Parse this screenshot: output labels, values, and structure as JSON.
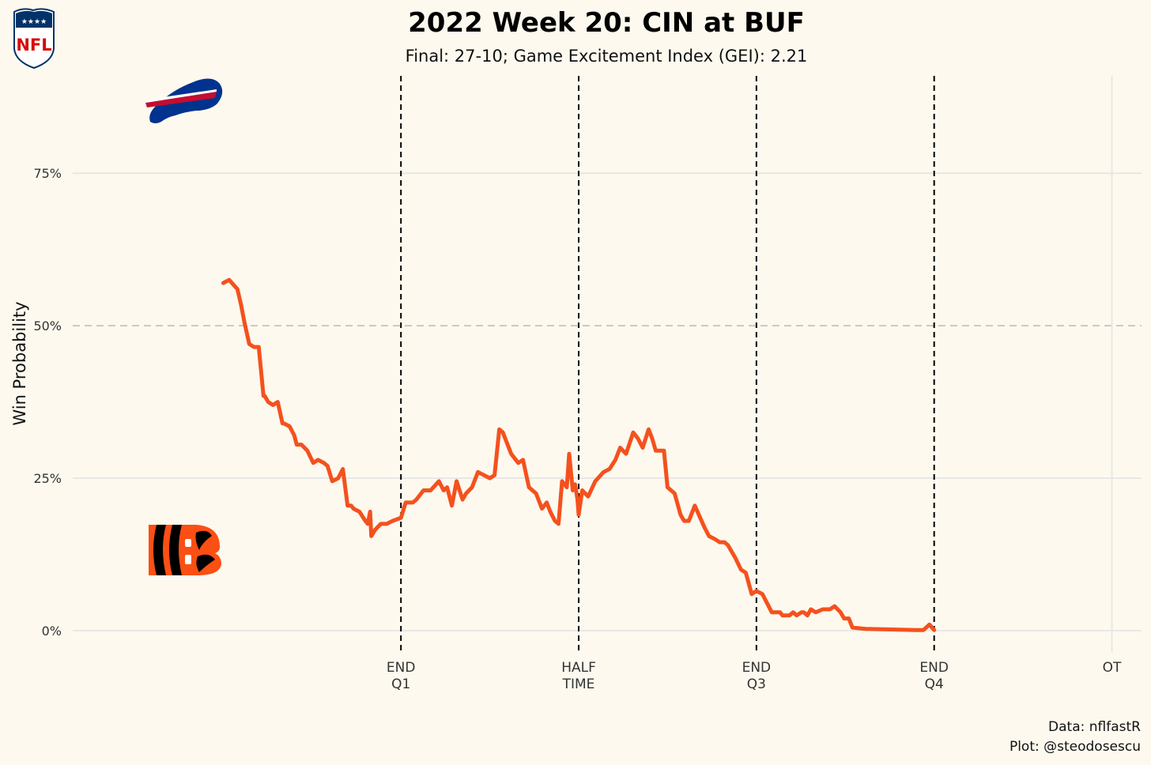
{
  "chart_data": {
    "type": "line",
    "title": "2022 Week 20: CIN at BUF",
    "subtitle": "Final: 27-10; Game Excitement Index (GEI): 2.21",
    "xlabel": "",
    "ylabel": "Win Probability",
    "x_unit": "game minutes elapsed",
    "xlim": [
      -12.7,
      77.5
    ],
    "ylim": [
      -0.035,
      0.92
    ],
    "y_ticks": [
      {
        "value": 0,
        "label": "0%"
      },
      {
        "value": 0.25,
        "label": "25%"
      },
      {
        "value": 0.5,
        "label": "50%"
      },
      {
        "value": 0.75,
        "label": "75%"
      }
    ],
    "x_ticks": [
      {
        "value": 15,
        "line1": "END",
        "line2": "Q1"
      },
      {
        "value": 30,
        "line1": "HALF",
        "line2": "TIME"
      },
      {
        "value": 45,
        "line1": "END",
        "line2": "Q3"
      },
      {
        "value": 60,
        "line1": "END",
        "line2": "Q4"
      },
      {
        "value": 75,
        "line1": "OT",
        "line2": ""
      }
    ],
    "reference_line_y": 0.5,
    "grid": true,
    "colors": {
      "series": "#f4511e",
      "background": "#fdf9ee",
      "grid": "#e6e6e6",
      "quarter_line": "#000000",
      "midline": "#bbbbbb"
    },
    "team_logos": {
      "top": "Buffalo Bills",
      "bottom": "Cincinnati Bengals"
    },
    "series": [
      {
        "x": [
          0,
          0.5,
          1.2,
          1.5,
          1.8,
          2.2,
          2.6,
          3,
          3.4,
          3.5,
          3.8,
          4.2,
          4.6,
          5,
          5.1,
          5.6,
          6,
          6.2,
          6.6,
          7.1,
          7.6,
          8,
          8.5,
          8.8,
          9.2,
          9.7,
          10.1,
          10.5,
          10.8,
          11,
          11.5,
          12,
          12.2,
          12.4,
          12.5,
          12.8,
          13.3,
          13.8,
          14.3,
          15,
          15.4,
          16,
          16.3,
          16.9,
          17.5,
          18.2,
          18.6,
          18.9,
          19.3,
          19.7,
          20.2,
          20.5,
          21,
          21.5,
          22,
          22.5,
          22.9,
          23.3,
          23.6,
          24.3,
          24.9,
          25.3,
          25.8,
          26.4,
          26.9,
          27.3,
          27.6,
          28,
          28.3,
          28.6,
          29,
          29.2,
          29.5,
          29.7,
          29.9,
          30,
          30.3,
          30.8,
          31.4,
          32.1,
          32.6,
          33.1,
          33.5,
          34,
          34.6,
          35,
          35.4,
          35.9,
          36.2,
          36.5,
          37.2,
          37.5,
          38.1,
          38.6,
          38.9,
          39.3,
          39.8,
          40.6,
          41,
          41.5,
          41.9,
          42.3,
          42.6,
          42.9,
          43.2,
          43.7,
          44.1,
          44.6,
          45,
          45.5,
          46.3,
          47,
          47.2,
          47.8,
          48.1,
          48.4,
          48.8,
          49,
          49.3,
          49.6,
          50,
          50.6,
          51.2,
          51.6,
          52.1,
          52.4,
          52.8,
          53.1,
          54.2,
          56,
          58.5,
          59.1,
          59.6,
          60
        ],
        "y": [
          0.57,
          0.575,
          0.56,
          0.535,
          0.505,
          0.47,
          0.465,
          0.465,
          0.385,
          0.385,
          0.375,
          0.37,
          0.375,
          0.34,
          0.34,
          0.335,
          0.32,
          0.305,
          0.305,
          0.295,
          0.275,
          0.28,
          0.275,
          0.27,
          0.245,
          0.25,
          0.265,
          0.205,
          0.205,
          0.2,
          0.195,
          0.18,
          0.175,
          0.195,
          0.155,
          0.165,
          0.175,
          0.175,
          0.18,
          0.185,
          0.21,
          0.21,
          0.215,
          0.23,
          0.23,
          0.245,
          0.23,
          0.235,
          0.205,
          0.245,
          0.215,
          0.225,
          0.235,
          0.26,
          0.255,
          0.25,
          0.255,
          0.33,
          0.325,
          0.29,
          0.275,
          0.28,
          0.235,
          0.225,
          0.2,
          0.21,
          0.195,
          0.18,
          0.175,
          0.245,
          0.235,
          0.29,
          0.23,
          0.24,
          0.215,
          0.19,
          0.23,
          0.22,
          0.245,
          0.26,
          0.265,
          0.28,
          0.3,
          0.29,
          0.325,
          0.315,
          0.3,
          0.33,
          0.315,
          0.295,
          0.295,
          0.235,
          0.225,
          0.19,
          0.18,
          0.18,
          0.205,
          0.17,
          0.155,
          0.15,
          0.145,
          0.145,
          0.14,
          0.13,
          0.12,
          0.1,
          0.095,
          0.06,
          0.065,
          0.06,
          0.03,
          0.03,
          0.025,
          0.025,
          0.03,
          0.025,
          0.03,
          0.03,
          0.025,
          0.035,
          0.03,
          0.035,
          0.035,
          0.04,
          0.03,
          0.02,
          0.02,
          0.005,
          0.003,
          0.002,
          0.001,
          0.001,
          0.01,
          0.001
        ]
      }
    ]
  },
  "caption": {
    "line1": "Data: nflfastR",
    "line2": "Plot: @steodosescu"
  },
  "logo_text": {
    "nfl": "NFL"
  }
}
